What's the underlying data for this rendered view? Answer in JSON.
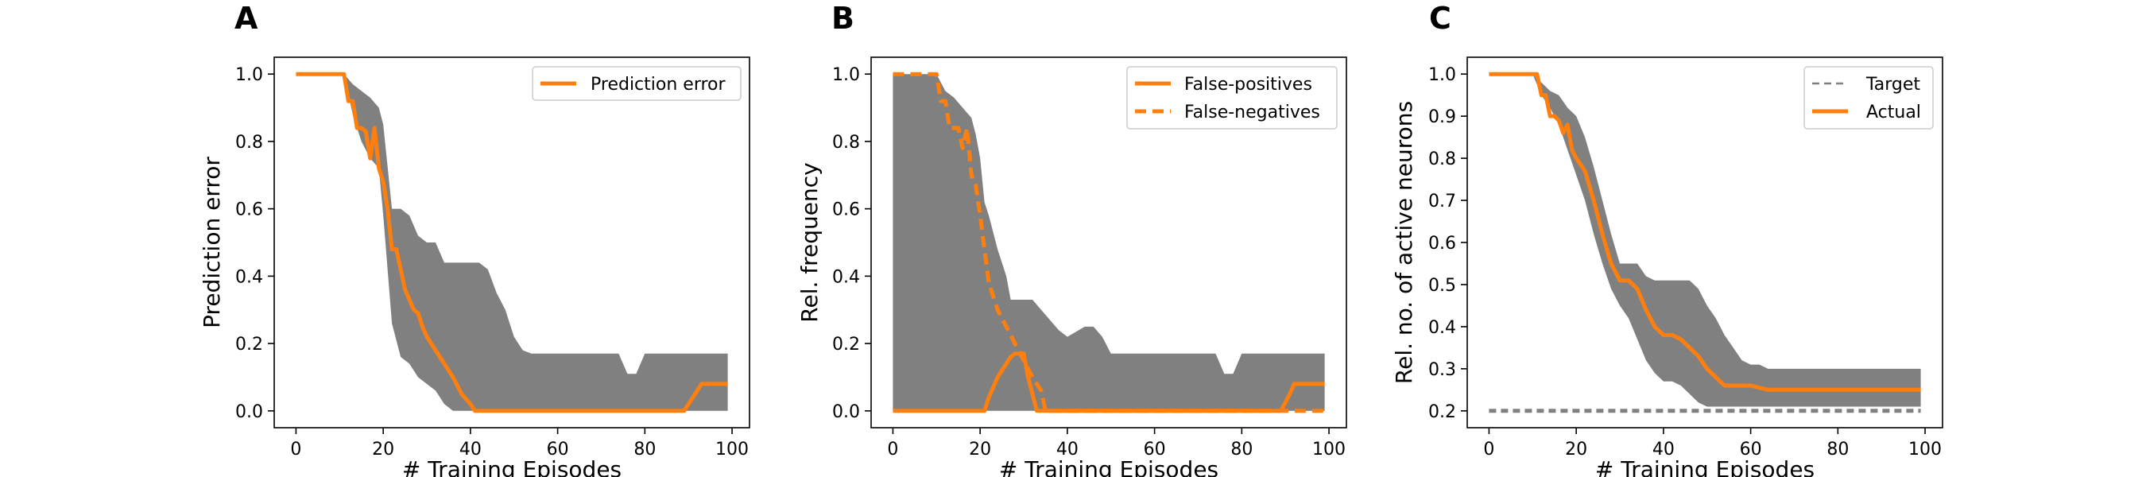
{
  "chart_data": [
    {
      "panel": "A",
      "type": "line",
      "xlabel": "# Training Episodes",
      "ylabel": "Prediction error",
      "xlim": [
        -5,
        104
      ],
      "ylim": [
        -0.05,
        1.05
      ],
      "xticks": [
        0,
        20,
        40,
        60,
        80,
        100
      ],
      "yticks": [
        0.0,
        0.2,
        0.4,
        0.6,
        0.8,
        1.0
      ],
      "ytick_labels": [
        "0.0",
        "0.2",
        "0.4",
        "0.6",
        "0.8",
        "1.0"
      ],
      "legend_position": "top-right",
      "band": {
        "x": [
          0,
          11,
          13,
          15,
          17,
          19,
          20,
          22,
          24,
          26,
          28,
          30,
          32,
          34,
          36,
          38,
          40,
          42,
          44,
          46,
          48,
          50,
          52,
          54,
          56,
          58,
          60,
          70,
          74,
          76,
          78,
          80,
          90,
          96,
          99
        ],
        "upper": [
          1.0,
          1.0,
          0.97,
          0.95,
          0.93,
          0.9,
          0.85,
          0.6,
          0.6,
          0.58,
          0.52,
          0.5,
          0.5,
          0.44,
          0.44,
          0.44,
          0.44,
          0.44,
          0.42,
          0.35,
          0.3,
          0.22,
          0.18,
          0.17,
          0.17,
          0.17,
          0.17,
          0.17,
          0.17,
          0.11,
          0.11,
          0.17,
          0.17,
          0.17,
          0.17
        ],
        "lower": [
          1.0,
          1.0,
          0.88,
          0.8,
          0.75,
          0.72,
          0.58,
          0.26,
          0.16,
          0.14,
          0.1,
          0.08,
          0.06,
          0.02,
          0.0,
          0.0,
          0.0,
          0.0,
          0.0,
          0.0,
          0.0,
          0.0,
          0.0,
          0.0,
          0.0,
          0.0,
          0.0,
          0.0,
          0.0,
          0.0,
          0.0,
          0.0,
          0.0,
          0.0,
          0.0
        ]
      },
      "series": [
        {
          "name": "Prediction error",
          "style": "solid",
          "color": "#ff7f0e",
          "x": [
            0,
            11,
            12,
            13,
            14,
            15,
            16,
            17,
            18,
            19,
            20,
            21,
            22,
            23,
            24,
            25,
            26,
            27,
            28,
            29,
            30,
            32,
            34,
            36,
            38,
            40,
            41,
            50,
            60,
            70,
            80,
            89,
            91,
            93,
            99
          ],
          "y": [
            1.0,
            1.0,
            0.92,
            0.92,
            0.84,
            0.84,
            0.83,
            0.75,
            0.84,
            0.72,
            0.68,
            0.6,
            0.48,
            0.48,
            0.42,
            0.36,
            0.33,
            0.3,
            0.29,
            0.25,
            0.22,
            0.18,
            0.14,
            0.1,
            0.05,
            0.02,
            0.0,
            0.0,
            0.0,
            0.0,
            0.0,
            0.0,
            0.04,
            0.08,
            0.08
          ]
        }
      ]
    },
    {
      "panel": "B",
      "type": "line",
      "xlabel": "# Training Episodes",
      "ylabel": "Rel. frequency",
      "xlim": [
        -5,
        104
      ],
      "ylim": [
        -0.05,
        1.05
      ],
      "xticks": [
        0,
        20,
        40,
        60,
        80,
        100
      ],
      "yticks": [
        0.0,
        0.2,
        0.4,
        0.6,
        0.8,
        1.0
      ],
      "ytick_labels": [
        "0.0",
        "0.2",
        "0.4",
        "0.6",
        "0.8",
        "1.0"
      ],
      "legend_position": "top-right",
      "band": {
        "x": [
          0,
          10,
          12,
          14,
          16,
          18,
          19,
          20,
          21,
          22,
          24,
          26,
          27,
          28,
          30,
          32,
          34,
          36,
          38,
          40,
          44,
          46,
          48,
          50,
          60,
          74,
          76,
          78,
          80,
          90,
          96,
          99
        ],
        "upper": [
          1.0,
          1.0,
          0.95,
          0.93,
          0.9,
          0.87,
          0.82,
          0.75,
          0.62,
          0.58,
          0.48,
          0.4,
          0.33,
          0.33,
          0.33,
          0.33,
          0.3,
          0.27,
          0.24,
          0.22,
          0.25,
          0.25,
          0.22,
          0.17,
          0.17,
          0.17,
          0.11,
          0.11,
          0.17,
          0.17,
          0.17,
          0.17
        ],
        "lower": [
          0.0,
          0.0,
          0.0,
          0.0,
          0.0,
          0.0,
          0.0,
          0.0,
          0.0,
          0.0,
          0.0,
          0.0,
          0.0,
          0.0,
          0.0,
          0.0,
          0.0,
          0.0,
          0.0,
          0.0,
          0.0,
          0.0,
          0.0,
          0.0,
          0.0,
          0.0,
          0.0,
          0.0,
          0.0,
          0.0,
          0.0,
          0.0
        ]
      },
      "series": [
        {
          "name": "False-positives",
          "style": "solid",
          "color": "#ff7f0e",
          "x": [
            0,
            10,
            15,
            20,
            21,
            22,
            24,
            26,
            27,
            28,
            30,
            31,
            32,
            33,
            34,
            40,
            50,
            60,
            70,
            80,
            89,
            91,
            92,
            99
          ],
          "y": [
            0.0,
            0.0,
            0.0,
            0.0,
            0.0,
            0.04,
            0.1,
            0.14,
            0.16,
            0.17,
            0.17,
            0.1,
            0.05,
            0.0,
            0.0,
            0.0,
            0.0,
            0.0,
            0.0,
            0.0,
            0.0,
            0.05,
            0.08,
            0.08
          ]
        },
        {
          "name": "False-negatives",
          "style": "dashed",
          "color": "#ff7f0e",
          "x": [
            0,
            10,
            11,
            12,
            13,
            14,
            15,
            16,
            17,
            18,
            19,
            20,
            21,
            22,
            24,
            26,
            28,
            30,
            32,
            34,
            35,
            36,
            37,
            40,
            50,
            60,
            70,
            80,
            90,
            92,
            94,
            96,
            99
          ],
          "y": [
            1.0,
            1.0,
            0.92,
            0.92,
            0.84,
            0.84,
            0.84,
            0.78,
            0.84,
            0.7,
            0.67,
            0.58,
            0.48,
            0.38,
            0.3,
            0.25,
            0.2,
            0.15,
            0.1,
            0.06,
            0.0,
            0.0,
            0.0,
            0.0,
            0.0,
            0.0,
            0.0,
            0.0,
            0.0,
            0.0,
            0.0,
            0.0,
            0.0
          ]
        }
      ]
    },
    {
      "panel": "C",
      "type": "line",
      "xlabel": "# Training Episodes",
      "ylabel": "Rel. no. of active neurons",
      "xlim": [
        -5,
        104
      ],
      "ylim": [
        0.16,
        1.04
      ],
      "xticks": [
        0,
        20,
        40,
        60,
        80,
        100
      ],
      "yticks": [
        0.2,
        0.3,
        0.4,
        0.5,
        0.6,
        0.7,
        0.8,
        0.9,
        1.0
      ],
      "ytick_labels": [
        "0.2",
        "0.3",
        "0.4",
        "0.5",
        "0.6",
        "0.7",
        "0.8",
        "0.9",
        "1.0"
      ],
      "legend_position": "top-right",
      "band": {
        "x": [
          0,
          10,
          12,
          14,
          16,
          18,
          20,
          22,
          24,
          26,
          28,
          30,
          32,
          34,
          36,
          38,
          40,
          42,
          44,
          46,
          48,
          50,
          52,
          54,
          56,
          58,
          60,
          62,
          64,
          66,
          70,
          80,
          90,
          99
        ],
        "upper": [
          1.0,
          1.0,
          0.98,
          0.96,
          0.95,
          0.92,
          0.9,
          0.85,
          0.78,
          0.7,
          0.62,
          0.55,
          0.55,
          0.55,
          0.52,
          0.51,
          0.51,
          0.51,
          0.51,
          0.51,
          0.49,
          0.45,
          0.42,
          0.38,
          0.35,
          0.32,
          0.31,
          0.31,
          0.3,
          0.3,
          0.3,
          0.3,
          0.3,
          0.3
        ],
        "lower": [
          1.0,
          1.0,
          0.95,
          0.92,
          0.88,
          0.82,
          0.76,
          0.7,
          0.62,
          0.55,
          0.49,
          0.45,
          0.42,
          0.37,
          0.32,
          0.29,
          0.27,
          0.27,
          0.26,
          0.24,
          0.22,
          0.21,
          0.21,
          0.21,
          0.21,
          0.21,
          0.21,
          0.21,
          0.21,
          0.21,
          0.21,
          0.21,
          0.21,
          0.21
        ]
      },
      "series": [
        {
          "name": "Target",
          "style": "dashed-thin",
          "color": "#808080",
          "x": [
            0,
            99
          ],
          "y": [
            0.2,
            0.2
          ]
        },
        {
          "name": "Actual",
          "style": "solid",
          "color": "#ff7f0e",
          "x": [
            0,
            11,
            12,
            13,
            14,
            15,
            16,
            17,
            18,
            19,
            20,
            22,
            24,
            26,
            28,
            30,
            32,
            34,
            36,
            38,
            40,
            42,
            44,
            46,
            48,
            50,
            52,
            54,
            56,
            60,
            64,
            70,
            80,
            90,
            99
          ],
          "y": [
            1.0,
            1.0,
            0.95,
            0.95,
            0.9,
            0.9,
            0.89,
            0.86,
            0.88,
            0.82,
            0.8,
            0.77,
            0.7,
            0.62,
            0.55,
            0.51,
            0.51,
            0.49,
            0.44,
            0.4,
            0.38,
            0.38,
            0.37,
            0.35,
            0.33,
            0.3,
            0.28,
            0.26,
            0.26,
            0.26,
            0.25,
            0.25,
            0.25,
            0.25,
            0.25
          ]
        }
      ]
    }
  ]
}
